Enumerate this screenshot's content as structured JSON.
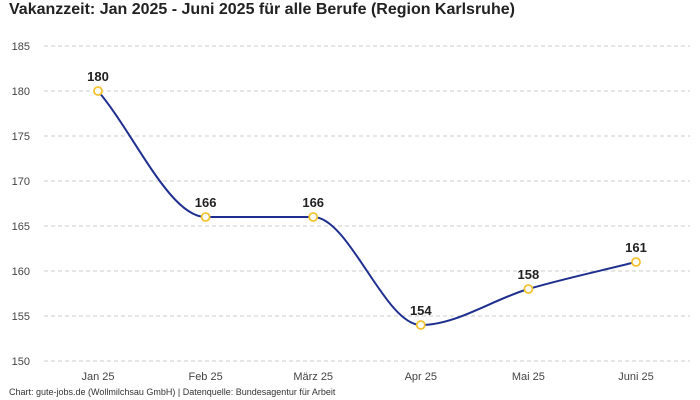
{
  "colors": {
    "line": "#1f2f8f",
    "marker_stroke": "#f2c230",
    "marker_fill": "#ffffff",
    "grid": "#cccccc"
  },
  "footer": {
    "text": "Chart: gute-jobs.de (Wollmilchsau GmbH) | Datenquelle: Bundesagentur für Arbeit"
  },
  "chart_data": {
    "type": "line",
    "title": "Vakanzzeit: Jan 2025 - Juni 2025 für alle Berufe (Region Karlsruhe)",
    "xlabel": "",
    "ylabel": "",
    "categories": [
      "Jan 25",
      "Feb 25",
      "März 25",
      "Apr 25",
      "Mai 25",
      "Juni 25"
    ],
    "series": [
      {
        "values": [
          180,
          166,
          166,
          154,
          158,
          161
        ]
      }
    ],
    "data_labels": [
      "180",
      "166",
      "166",
      "154",
      "158",
      "161"
    ],
    "ylim": [
      150,
      185
    ],
    "yticks": [
      150,
      155,
      160,
      165,
      170,
      175,
      180,
      185
    ],
    "ytick_labels": [
      "150",
      "155",
      "160",
      "165",
      "170",
      "175",
      "180",
      "185"
    ],
    "grid": true,
    "curve": "smooth"
  }
}
